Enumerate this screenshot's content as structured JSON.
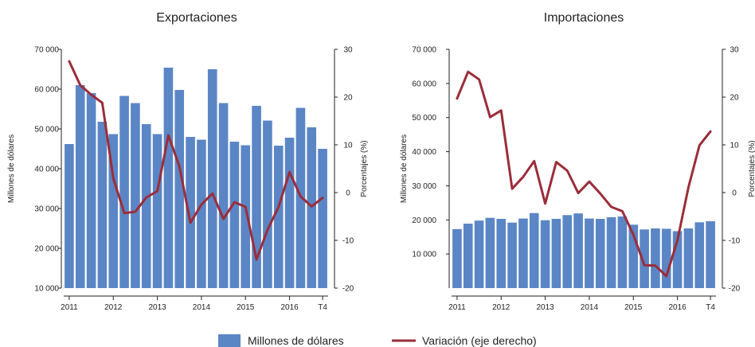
{
  "colors": {
    "bar": "#5b86c5",
    "line": "#9b2d3a",
    "axis": "#222222"
  },
  "legend": {
    "bars": "Millones de dólares",
    "line": "Variación (eje derecho)"
  },
  "chart_data": [
    {
      "type": "bar",
      "title": "Exportaciones",
      "ylabel": "Millones de dólares",
      "y2label": "Porcentajes (%)",
      "ylim": [
        10000,
        70000
      ],
      "y2lim": [
        -20,
        30
      ],
      "yticks": [
        "10 000",
        "20 000",
        "30 000",
        "40 000",
        "50 000",
        "60 000",
        "70 000"
      ],
      "y2ticks": [
        "-20",
        "-10",
        "0",
        "10",
        "20",
        "30"
      ],
      "xticks": [
        {
          "label": "2011",
          "index": 0
        },
        {
          "label": "2012",
          "index": 4
        },
        {
          "label": "2013",
          "index": 8
        },
        {
          "label": "2014",
          "index": 12
        },
        {
          "label": "2015",
          "index": 16
        },
        {
          "label": "2016",
          "index": 20
        },
        {
          "label": "T4",
          "index": 23
        }
      ],
      "grid": false,
      "series": [
        {
          "name": "Millones de dólares",
          "type": "bar",
          "values": [
            46200,
            61000,
            59000,
            51800,
            48700,
            58300,
            56500,
            51200,
            48700,
            65400,
            59800,
            48000,
            47300,
            65000,
            56500,
            46800,
            45900,
            55800,
            52100,
            45800,
            47800,
            55300,
            50400,
            45000
          ]
        },
        {
          "name": "Variación (eje derecho)",
          "type": "line",
          "axis": "right",
          "values": [
            27.5,
            22.5,
            20.5,
            18.8,
            3.0,
            -4.3,
            -4.0,
            -1.0,
            0.3,
            12.0,
            5.5,
            -6.3,
            -2.5,
            -0.2,
            -5.5,
            -2.0,
            -3.0,
            -14.0,
            -7.8,
            -3.0,
            4.3,
            -0.8,
            -2.9,
            -1.1
          ]
        }
      ]
    },
    {
      "type": "bar",
      "title": "Importaciones",
      "ylabel": "Millones de dólares",
      "y2label": "Porcentajes (%)",
      "ylim": [
        0,
        70000
      ],
      "y2lim": [
        -20,
        30
      ],
      "yticks": [
        "10 000",
        "20 000",
        "30 000",
        "40 000",
        "50 000",
        "60 000",
        "70 000"
      ],
      "y2ticks": [
        "-20",
        "-10",
        "0",
        "10",
        "20",
        "30"
      ],
      "xticks": [
        {
          "label": "2011",
          "index": 0
        },
        {
          "label": "2012",
          "index": 4
        },
        {
          "label": "2013",
          "index": 8
        },
        {
          "label": "2014",
          "index": 12
        },
        {
          "label": "2015",
          "index": 16
        },
        {
          "label": "2016",
          "index": 20
        },
        {
          "label": "T4",
          "index": 23
        }
      ],
      "grid": false,
      "series": [
        {
          "name": "Millones de dólares",
          "type": "bar",
          "values": [
            17300,
            18900,
            19800,
            20600,
            20300,
            19200,
            20400,
            22000,
            19900,
            20300,
            21400,
            21900,
            20400,
            20300,
            20800,
            21000,
            18600,
            17200,
            17500,
            17400,
            16700,
            17500,
            19300,
            19600
          ]
        },
        {
          "name": "Variación (eje derecho)",
          "type": "line",
          "axis": "right",
          "values": [
            19.7,
            25.3,
            23.7,
            15.8,
            17.2,
            0.8,
            3.3,
            6.6,
            -2.3,
            6.4,
            4.6,
            -0.1,
            2.3,
            -0.2,
            -3.0,
            -3.9,
            -8.8,
            -15.2,
            -15.3,
            -17.5,
            -10.0,
            1.1,
            9.9,
            12.8
          ]
        }
      ]
    }
  ]
}
